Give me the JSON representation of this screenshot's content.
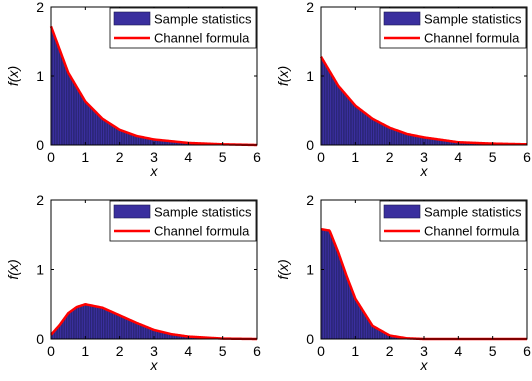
{
  "colors": {
    "bar": "#3a2f9e",
    "bar_edge": "#1a1a50",
    "curve": "#ff0000",
    "axis": "#000000"
  },
  "chart_data": [
    {
      "type": "bar",
      "xlabel": "x",
      "ylabel": "f(x)",
      "xlim": [
        0,
        6
      ],
      "ylim": [
        0,
        2
      ],
      "xticks": [
        "0",
        "1",
        "2",
        "3",
        "4",
        "5",
        "6"
      ],
      "yticks": [
        "0",
        "1",
        "2"
      ],
      "grid": false,
      "legend_position": "top-right",
      "series": [
        {
          "name": "Sample statistics",
          "type": "bar",
          "values_at": [
            [
              0,
              1.72
            ],
            [
              0.5,
              1.05
            ],
            [
              1,
              0.63
            ],
            [
              1.5,
              0.38
            ],
            [
              2,
              0.22
            ],
            [
              2.5,
              0.13
            ],
            [
              3,
              0.08
            ],
            [
              4,
              0.03
            ],
            [
              5,
              0.01
            ],
            [
              6,
              0.0
            ]
          ]
        },
        {
          "name": "Channel formula",
          "type": "line",
          "values_at": [
            [
              0,
              1.72
            ],
            [
              0.5,
              1.05
            ],
            [
              1,
              0.63
            ],
            [
              1.5,
              0.38
            ],
            [
              2,
              0.22
            ],
            [
              2.5,
              0.13
            ],
            [
              3,
              0.08
            ],
            [
              4,
              0.03
            ],
            [
              5,
              0.01
            ],
            [
              6,
              0.0
            ]
          ]
        }
      ]
    },
    {
      "type": "bar",
      "xlabel": "x",
      "ylabel": "f(x)",
      "xlim": [
        0,
        6
      ],
      "ylim": [
        0,
        2
      ],
      "xticks": [
        "0",
        "1",
        "2",
        "3",
        "4",
        "5",
        "6"
      ],
      "yticks": [
        "0",
        "1",
        "2"
      ],
      "grid": false,
      "legend_position": "top-right",
      "series": [
        {
          "name": "Sample statistics",
          "type": "bar",
          "values_at": [
            [
              0,
              1.28
            ],
            [
              0.5,
              0.86
            ],
            [
              1,
              0.57
            ],
            [
              1.5,
              0.38
            ],
            [
              2,
              0.25
            ],
            [
              2.5,
              0.16
            ],
            [
              3,
              0.11
            ],
            [
              4,
              0.04
            ],
            [
              5,
              0.02
            ],
            [
              6,
              0.01
            ]
          ]
        },
        {
          "name": "Channel formula",
          "type": "line",
          "values_at": [
            [
              0,
              1.28
            ],
            [
              0.5,
              0.86
            ],
            [
              1,
              0.57
            ],
            [
              1.5,
              0.38
            ],
            [
              2,
              0.25
            ],
            [
              2.5,
              0.16
            ],
            [
              3,
              0.11
            ],
            [
              4,
              0.04
            ],
            [
              5,
              0.02
            ],
            [
              6,
              0.01
            ]
          ]
        }
      ]
    },
    {
      "type": "bar",
      "xlabel": "x",
      "ylabel": "f(x)",
      "xlim": [
        0,
        6
      ],
      "ylim": [
        0,
        2
      ],
      "xticks": [
        "0",
        "1",
        "2",
        "3",
        "4",
        "5",
        "6"
      ],
      "yticks": [
        "0",
        "1",
        "2"
      ],
      "grid": false,
      "legend_position": "top-right",
      "series": [
        {
          "name": "Sample statistics",
          "type": "bar",
          "values_at": [
            [
              0,
              0.06
            ],
            [
              0.25,
              0.2
            ],
            [
              0.5,
              0.37
            ],
            [
              0.75,
              0.46
            ],
            [
              1,
              0.5
            ],
            [
              1.5,
              0.45
            ],
            [
              2,
              0.34
            ],
            [
              2.5,
              0.23
            ],
            [
              3,
              0.13
            ],
            [
              3.5,
              0.07
            ],
            [
              4,
              0.035
            ],
            [
              5,
              0.006
            ],
            [
              6,
              0.0
            ]
          ]
        },
        {
          "name": "Channel formula",
          "type": "line",
          "values_at": [
            [
              0,
              0.06
            ],
            [
              0.25,
              0.2
            ],
            [
              0.5,
              0.37
            ],
            [
              0.75,
              0.46
            ],
            [
              1,
              0.5
            ],
            [
              1.5,
              0.45
            ],
            [
              2,
              0.34
            ],
            [
              2.5,
              0.23
            ],
            [
              3,
              0.13
            ],
            [
              3.5,
              0.07
            ],
            [
              4,
              0.035
            ],
            [
              5,
              0.006
            ],
            [
              6,
              0.0
            ]
          ]
        }
      ]
    },
    {
      "type": "bar",
      "xlabel": "x",
      "ylabel": "f(x)",
      "xlim": [
        0,
        6
      ],
      "ylim": [
        0,
        2
      ],
      "xticks": [
        "0",
        "1",
        "2",
        "3",
        "4",
        "5",
        "6"
      ],
      "yticks": [
        "0",
        "1",
        "2"
      ],
      "grid": false,
      "legend_position": "top-right",
      "series": [
        {
          "name": "Sample statistics",
          "type": "bar",
          "values_at": [
            [
              0,
              1.58
            ],
            [
              0.25,
              1.56
            ],
            [
              0.5,
              1.25
            ],
            [
              0.75,
              0.9
            ],
            [
              1,
              0.58
            ],
            [
              1.5,
              0.19
            ],
            [
              2,
              0.05
            ],
            [
              2.5,
              0.01
            ],
            [
              3,
              0.0
            ],
            [
              6,
              0.0
            ]
          ]
        },
        {
          "name": "Channel formula",
          "type": "line",
          "values_at": [
            [
              0,
              1.58
            ],
            [
              0.25,
              1.56
            ],
            [
              0.5,
              1.25
            ],
            [
              0.75,
              0.9
            ],
            [
              1,
              0.58
            ],
            [
              1.5,
              0.19
            ],
            [
              2,
              0.05
            ],
            [
              2.5,
              0.01
            ],
            [
              3,
              0.0
            ],
            [
              6,
              0.0
            ]
          ]
        }
      ]
    }
  ]
}
